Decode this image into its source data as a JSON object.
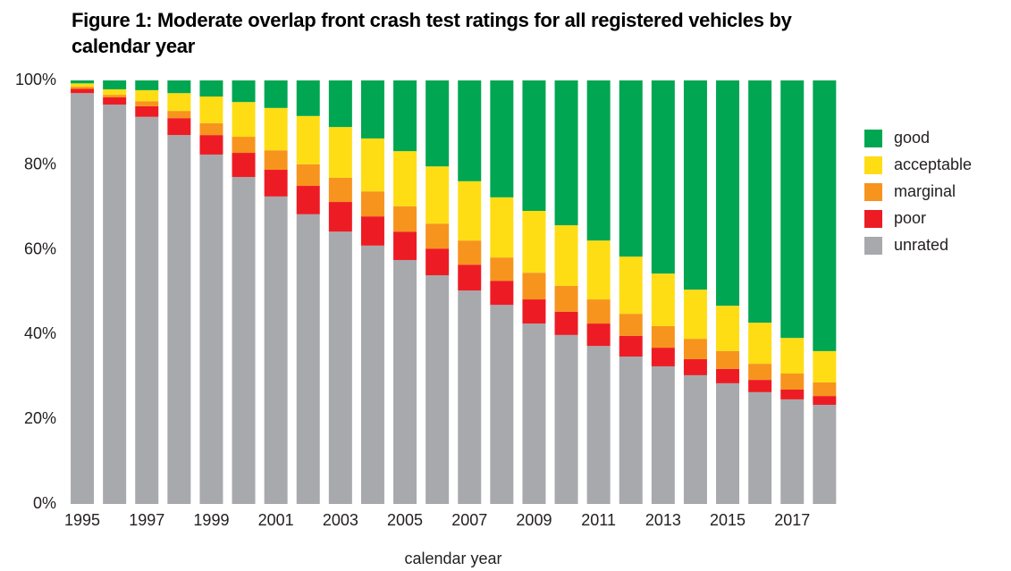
{
  "chart_data": {
    "type": "stacked_bar",
    "title": "Figure 1: Moderate overlap front crash test ratings for all registered vehicles by calendar year",
    "x_label": "calendar year",
    "categories": [
      "1995",
      null,
      "1997",
      null,
      "1999",
      null,
      "2001",
      null,
      "2003",
      null,
      "2005",
      null,
      "2007",
      null,
      "2009",
      null,
      "2011",
      null,
      "2013",
      null,
      "2015",
      null,
      "2017",
      null
    ],
    "series": [
      {
        "name": "unrated",
        "color": "#a7a9ac",
        "values": [
          97,
          94.3,
          91.4,
          87.1,
          82.5,
          77.2,
          72.6,
          68.4,
          64.3,
          61,
          57.6,
          54,
          50.4,
          47,
          42.6,
          39.9,
          37.3,
          34.8,
          32.5,
          30.4,
          28.5,
          26.4,
          24.7,
          23.4
        ]
      },
      {
        "name": "poor",
        "color": "#ed1c24",
        "values": [
          1,
          1.7,
          2.5,
          4,
          4.6,
          5.7,
          6.3,
          6.7,
          7,
          6.9,
          6.7,
          6.3,
          6.1,
          5.7,
          5.7,
          5.5,
          5.3,
          4.9,
          4.4,
          3.8,
          3.4,
          2.9,
          2.3,
          2.1
        ]
      },
      {
        "name": "marginal",
        "color": "#f7941d",
        "values": [
          0.5,
          0.6,
          1.2,
          1.7,
          2.8,
          3.8,
          4.6,
          5.1,
          5.7,
          5.9,
          6,
          5.9,
          5.7,
          5.5,
          6.3,
          6.1,
          5.7,
          5.2,
          5.1,
          4.8,
          4.2,
          3.8,
          3.8,
          3.2
        ]
      },
      {
        "name": "acceptable",
        "color": "#ffdd15",
        "values": [
          0.8,
          1.3,
          2.6,
          4.2,
          6.3,
          8.2,
          10,
          11.4,
          12,
          12.5,
          13,
          13.5,
          14,
          14.2,
          14.6,
          14.3,
          13.9,
          13.5,
          12.4,
          11.6,
          10.7,
          9.7,
          8.4,
          7.4
        ]
      },
      {
        "name": "good",
        "color": "#00a651",
        "values": [
          0.7,
          2.1,
          2.3,
          3,
          3.8,
          5.1,
          6.5,
          8.4,
          11,
          13.7,
          16.7,
          20.3,
          23.8,
          27.6,
          30.8,
          34.2,
          37.8,
          41.6,
          45.6,
          49.4,
          53.2,
          57.2,
          60.8,
          63.9
        ]
      }
    ],
    "ylim": [
      0,
      100
    ],
    "yticks": [
      {
        "value": 0,
        "label": "0%"
      },
      {
        "value": 20,
        "label": "20%"
      },
      {
        "value": 40,
        "label": "40%"
      },
      {
        "value": 60,
        "label": "60%"
      },
      {
        "value": 80,
        "label": "80%"
      },
      {
        "value": 100,
        "label": "100%"
      }
    ],
    "legend": "right"
  }
}
